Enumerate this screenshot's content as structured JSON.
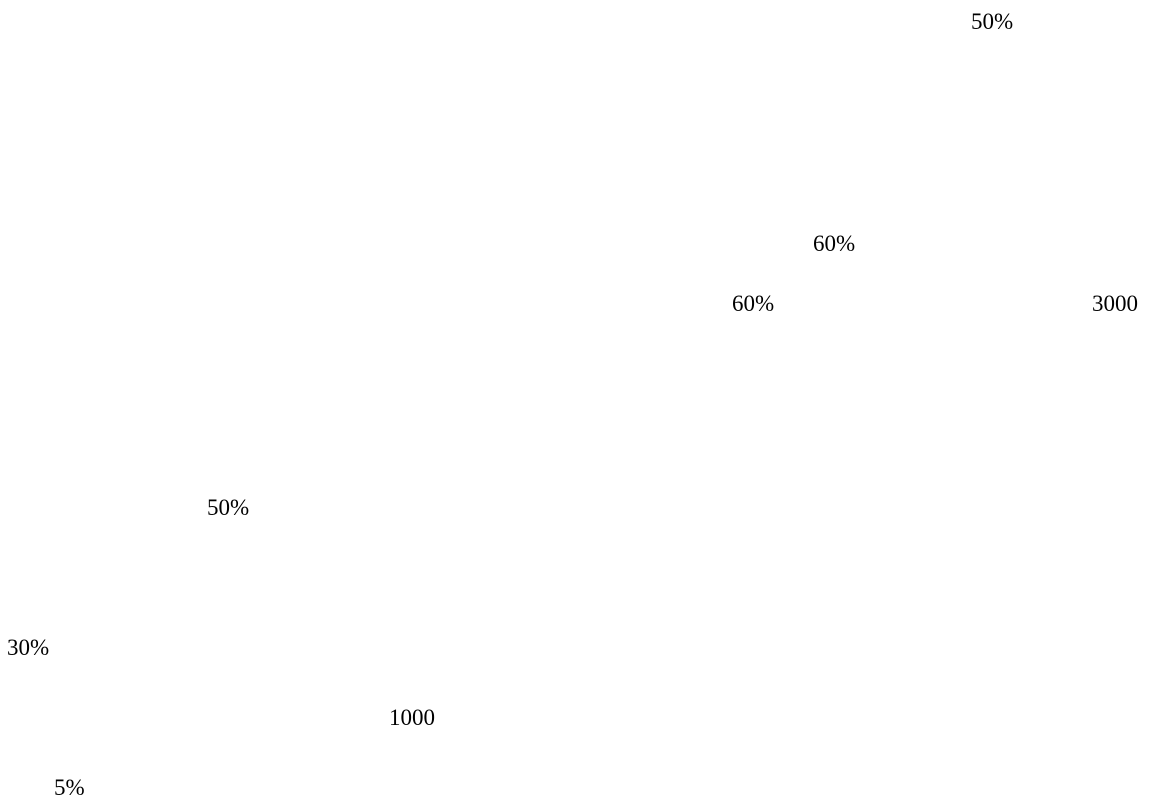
{
  "labels": [
    "50%",
    "60%",
    "60%",
    "3000",
    "50%",
    "30%",
    "1000",
    "5%"
  ]
}
